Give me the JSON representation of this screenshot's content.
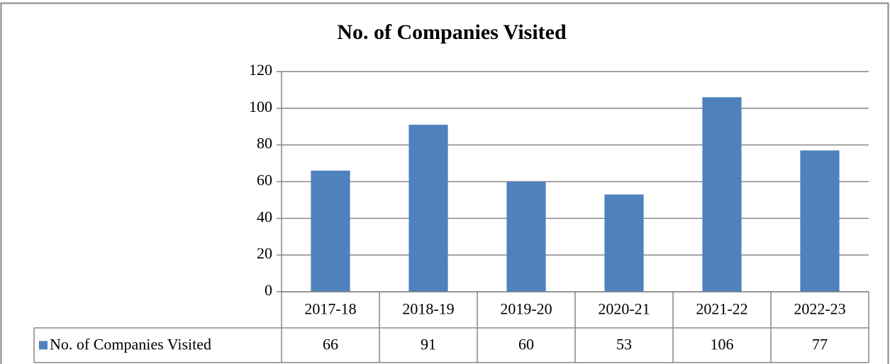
{
  "chart_data": {
    "type": "bar",
    "title": "No. of Companies Visited",
    "categories": [
      "2017-18",
      "2018-19",
      "2019-20",
      "2020-21",
      "2021-22",
      "2022-23"
    ],
    "series": [
      {
        "name": "No. of Companies Visited",
        "color": "#4f81bd",
        "values": [
          66,
          91,
          60,
          53,
          106,
          77
        ]
      }
    ],
    "ylim": [
      0,
      120
    ],
    "yticks": [
      0,
      20,
      40,
      60,
      80,
      100,
      120
    ],
    "grid": true,
    "data_table": true
  }
}
